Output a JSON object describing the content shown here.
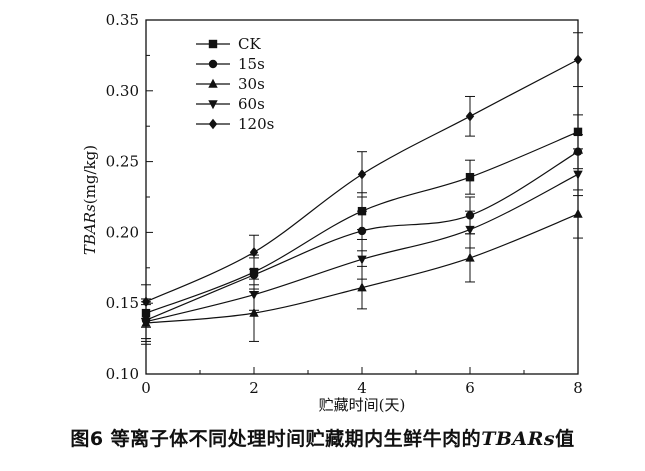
{
  "chart_data": {
    "type": "line",
    "x": [
      0,
      2,
      4,
      6,
      8
    ],
    "xlabel": "贮藏时间(天)",
    "ylabel_italic": "TBARs",
    "ylabel_unit": "(mg/kg)",
    "xlim": [
      0,
      8
    ],
    "ylim": [
      0.1,
      0.35
    ],
    "xticks": [
      "0",
      "2",
      "4",
      "6",
      "8"
    ],
    "yticks": [
      "0.10",
      "0.15",
      "0.20",
      "0.25",
      "0.30",
      "0.35"
    ],
    "legend_position": "top-left",
    "grid": false,
    "series": [
      {
        "name": "CK",
        "marker": "square",
        "values": [
          0.143,
          0.172,
          0.215,
          0.239,
          0.271
        ],
        "errors": [
          0.01,
          0.012,
          0.013,
          0.012,
          0.012
        ]
      },
      {
        "name": "15s",
        "marker": "circle",
        "values": [
          0.138,
          0.17,
          0.201,
          0.212,
          0.257
        ],
        "errors": [
          0.015,
          0.012,
          0.014,
          0.013,
          0.012
        ]
      },
      {
        "name": "30s",
        "marker": "triangle-up",
        "values": [
          0.136,
          0.143,
          0.161,
          0.182,
          0.213
        ],
        "errors": [
          0.015,
          0.02,
          0.015,
          0.017,
          0.017
        ]
      },
      {
        "name": "60s",
        "marker": "triangle-down",
        "values": [
          0.137,
          0.156,
          0.181,
          0.202,
          0.241
        ],
        "errors": [
          0.012,
          0.011,
          0.014,
          0.013,
          0.015
        ]
      },
      {
        "name": "120s",
        "marker": "diamond",
        "values": [
          0.151,
          0.186,
          0.241,
          0.282,
          0.322
        ],
        "errors": [
          0.012,
          0.012,
          0.016,
          0.014,
          0.019
        ]
      }
    ]
  },
  "caption": {
    "prefix": "图6 等离子体不同处理时间贮藏期内生鲜牛肉的",
    "italic": "TBARs",
    "suffix": "值"
  }
}
